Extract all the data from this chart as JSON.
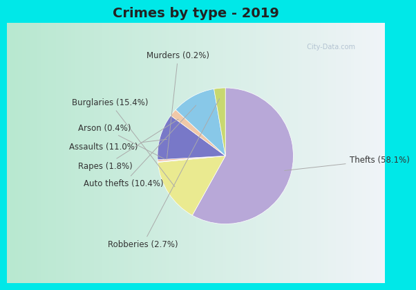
{
  "title": "Crimes by type - 2019",
  "slices": [
    {
      "label": "Thefts",
      "pct": 58.1,
      "color": "#b8a8d8"
    },
    {
      "label": "Burglaries",
      "pct": 15.4,
      "color": "#eaea90"
    },
    {
      "label": "Murders",
      "pct": 0.2,
      "color": "#d8d8d8"
    },
    {
      "label": "Arson",
      "pct": 0.4,
      "color": "#f0b8a0"
    },
    {
      "label": "Assaults",
      "pct": 11.0,
      "color": "#7878c8"
    },
    {
      "label": "Rapes",
      "pct": 1.8,
      "color": "#f0c8a8"
    },
    {
      "label": "Auto thefts",
      "pct": 10.4,
      "color": "#88c8e8"
    },
    {
      "label": "Robberies",
      "pct": 2.7,
      "color": "#c8d870"
    }
  ],
  "bg_border": "#00e8e8",
  "bg_inner_left": "#b8e8d0",
  "bg_inner_right": "#f0f4f8",
  "title_fontsize": 14,
  "label_fontsize": 8.5,
  "startangle": 90,
  "border_width": 8
}
